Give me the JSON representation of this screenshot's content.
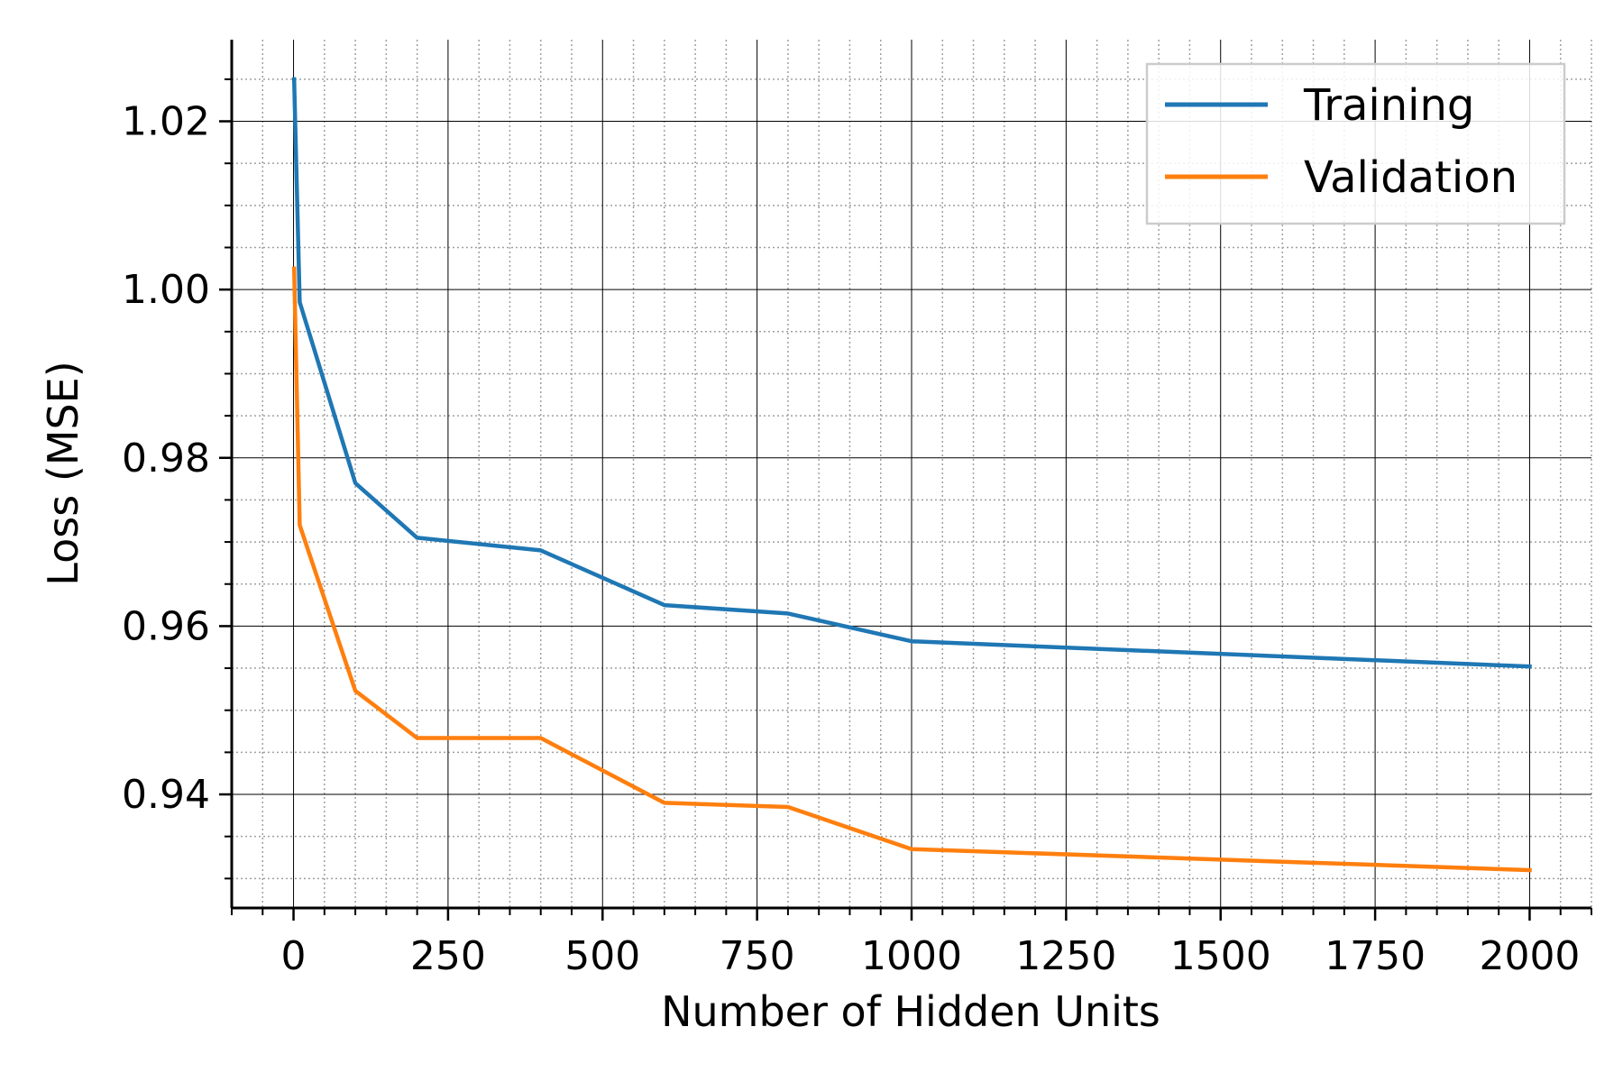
{
  "chart_data": {
    "type": "line",
    "title": "",
    "xlabel": "Number of Hidden Units",
    "ylabel": "Loss (MSE)",
    "xlim": [
      -100,
      2100
    ],
    "ylim": [
      0.9265,
      1.0297
    ],
    "x_ticks": [
      0,
      250,
      500,
      750,
      1000,
      1250,
      1500,
      1750,
      2000
    ],
    "y_ticks": [
      0.94,
      0.96,
      0.98,
      1.0,
      1.02
    ],
    "y_tick_labels": [
      "0.94",
      "0.96",
      "0.98",
      "1.00",
      "1.02"
    ],
    "x_minor_step": 50,
    "y_minor_step": 0.005,
    "grid": true,
    "legend_position": "top-right",
    "series": [
      {
        "name": "Training",
        "color": "#1f77b4",
        "x": [
          1,
          10,
          100,
          200,
          400,
          600,
          800,
          1000,
          2000
        ],
        "y": [
          1.025,
          0.9985,
          0.977,
          0.9705,
          0.969,
          0.9625,
          0.9615,
          0.9582,
          0.9552
        ]
      },
      {
        "name": "Validation",
        "color": "#ff7f0e",
        "x": [
          1,
          10,
          100,
          200,
          400,
          600,
          800,
          1000,
          2000
        ],
        "y": [
          1.0025,
          0.972,
          0.9523,
          0.9467,
          0.9467,
          0.939,
          0.9385,
          0.9335,
          0.931
        ]
      }
    ]
  }
}
